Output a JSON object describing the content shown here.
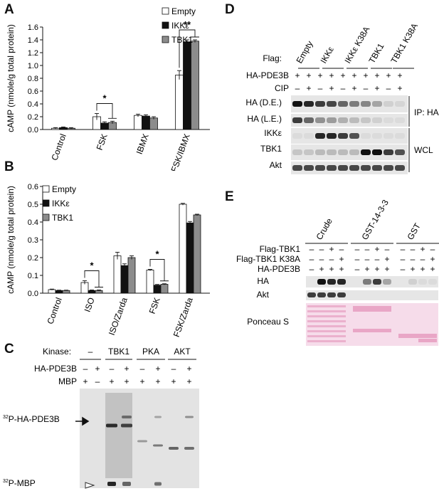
{
  "panels": {
    "A": "A",
    "B": "B",
    "C": "C",
    "D": "D",
    "E": "E"
  },
  "legend": [
    "Empty",
    "IKKε",
    "TBK1"
  ],
  "colors": {
    "empty": "#ffffff",
    "ikke": "#111111",
    "tbk1": "#8c8c8c",
    "ponceau": "#e9a6c6",
    "blot_bg": "#e6e6e6"
  },
  "chart_data": [
    {
      "type": "bar",
      "panel": "A",
      "ylabel": "cAMP (nmole/g total protein)",
      "ylim": [
        0,
        1.6
      ],
      "yticks": [
        "0.0",
        "0.2",
        "0.4",
        "0.6",
        "0.8",
        "1.0",
        "1.2",
        "1.4",
        "1.6"
      ],
      "categories": [
        "Control",
        "FSK",
        "IBMX",
        "FSK/IBMX"
      ],
      "series": [
        {
          "name": "Empty",
          "values": [
            0.02,
            0.2,
            0.22,
            0.85
          ],
          "errors": [
            0.01,
            0.05,
            0.02,
            0.07
          ]
        },
        {
          "name": "IKKε",
          "values": [
            0.03,
            0.1,
            0.21,
            1.37
          ],
          "errors": [
            0.01,
            0.02,
            0.02,
            0.03
          ]
        },
        {
          "name": "TBK1",
          "values": [
            0.02,
            0.11,
            0.18,
            1.38
          ],
          "errors": [
            0.01,
            0.02,
            0.02,
            0.02
          ]
        }
      ],
      "significance": [
        {
          "category": "FSK",
          "label": "*"
        },
        {
          "category": "FSK/IBMX",
          "label": "**"
        }
      ]
    },
    {
      "type": "bar",
      "panel": "B",
      "ylabel": "cAMP (nmole/g total protein)",
      "ylim": [
        0,
        0.6
      ],
      "yticks": [
        "0.0",
        "0.1",
        "0.2",
        "0.3",
        "0.4",
        "0.5",
        "0.6"
      ],
      "categories": [
        "Control",
        "ISO",
        "ISO/Zarda",
        "FSK",
        "FSK/Zarda"
      ],
      "series": [
        {
          "name": "Empty",
          "values": [
            0.02,
            0.06,
            0.21,
            0.13,
            0.5
          ],
          "errors": [
            0.003,
            0.01,
            0.02,
            0.004,
            0.005
          ]
        },
        {
          "name": "IKKε",
          "values": [
            0.015,
            0.015,
            0.155,
            0.045,
            0.395
          ],
          "errors": [
            0.002,
            0.003,
            0.01,
            0.004,
            0.008
          ]
        },
        {
          "name": "TBK1",
          "values": [
            0.015,
            0.015,
            0.2,
            0.05,
            0.44
          ],
          "errors": [
            0.002,
            0.003,
            0.01,
            0.003,
            0.004
          ]
        }
      ],
      "significance": [
        {
          "category": "ISO",
          "label": "*"
        },
        {
          "category": "FSK",
          "label": "*"
        }
      ]
    }
  ],
  "panelC": {
    "kinase_label": "Kinase:",
    "kinases": [
      "–",
      "TBK1",
      "PKA",
      "AKT"
    ],
    "row_labels": [
      "HA-PDE3B",
      "MBP"
    ],
    "ha_pde3b": [
      "–",
      "+",
      "–",
      "+",
      "–",
      "+",
      "–",
      "+"
    ],
    "mbp": [
      "+",
      "–",
      "+",
      "+",
      "+",
      "+",
      "+",
      "+"
    ],
    "band_labels": {
      "pde3b_prefix": "32",
      "pde3b": "P-HA-PDE3B",
      "mbp_prefix": "32",
      "mbp": "P-MBP"
    }
  },
  "panelD": {
    "flag_label": "Flag:",
    "flag_groups": [
      "Empty",
      "IKKε",
      "IKKε K38A",
      "TBK1",
      "TBK1 K38A"
    ],
    "row_labels": [
      "HA-PDE3B",
      "CIP"
    ],
    "ha_pde3b": [
      "+",
      "+",
      "+",
      "+",
      "+",
      "+",
      "+",
      "+",
      "+",
      "+"
    ],
    "cip": [
      "–",
      "+",
      "–",
      "+",
      "–",
      "+",
      "–",
      "+",
      "–",
      "+"
    ],
    "blots": [
      "HA (D.E.)",
      "HA (L.E.)",
      "IKKε",
      "TBK1",
      "Akt"
    ],
    "side_labels": [
      "IP: HA",
      "WCL"
    ]
  },
  "panelE": {
    "groups": [
      "Crude",
      "GST-14-3-3",
      "GST"
    ],
    "rows": [
      {
        "label": "Flag-TBK1",
        "values": [
          "–",
          "–",
          "+",
          "–",
          "–",
          "–",
          "+",
          "–",
          "–",
          "–",
          "+",
          "–"
        ]
      },
      {
        "label": "Flag-TBK1 K38A",
        "values": [
          "–",
          "–",
          "–",
          "+",
          "–",
          "–",
          "–",
          "+",
          "–",
          "–",
          "–",
          "+"
        ]
      },
      {
        "label": "HA-PDE3B",
        "values": [
          "–",
          "+",
          "+",
          "+",
          "–",
          "+",
          "+",
          "+",
          "–",
          "+",
          "+",
          "+"
        ]
      }
    ],
    "blots": [
      "HA",
      "Akt",
      "Ponceau S"
    ]
  }
}
